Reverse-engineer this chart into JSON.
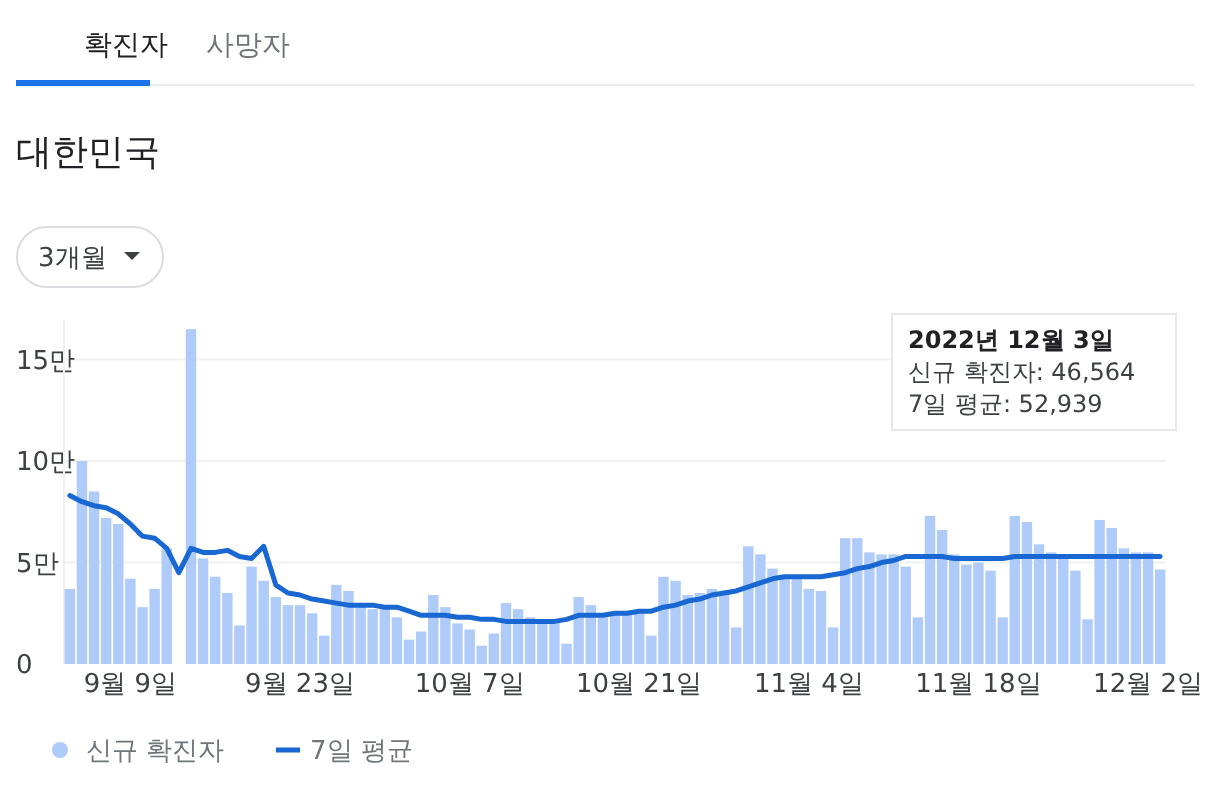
{
  "chart_data": {
    "type": "bar",
    "title": "대한민국",
    "categories": [
      null,
      null,
      null,
      null,
      null,
      "9월 9일",
      null,
      null,
      null,
      null,
      null,
      null,
      null,
      null,
      null,
      null,
      null,
      null,
      null,
      "9월 23일",
      null,
      null,
      null,
      null,
      null,
      null,
      null,
      null,
      null,
      null,
      null,
      null,
      null,
      "10월 7일",
      null,
      null,
      null,
      null,
      null,
      null,
      null,
      null,
      null,
      null,
      null,
      null,
      null,
      "10월 21일",
      null,
      null,
      null,
      null,
      null,
      null,
      null,
      null,
      null,
      null,
      null,
      null,
      null,
      "11월 4일",
      null,
      null,
      null,
      null,
      null,
      null,
      null,
      null,
      null,
      null,
      null,
      null,
      null,
      "11월 18일",
      null,
      null,
      null,
      null,
      null,
      null,
      null,
      null,
      null,
      null,
      null,
      null,
      null,
      "12월 2일",
      null
    ],
    "series": [
      {
        "name": "신규 확진자",
        "color": "#aecbfa",
        "values": [
          3.7,
          10,
          8.5,
          7.2,
          6.9,
          4.2,
          2.8,
          3.7,
          5.7,
          null,
          16.5,
          5.2,
          4.3,
          3.5,
          1.9,
          4.8,
          4.1,
          3.3,
          2.9,
          2.9,
          2.5,
          1.4,
          3.9,
          3.6,
          2.9,
          2.7,
          2.9,
          2.3,
          1.2,
          1.6,
          3.4,
          2.8,
          2,
          1.7,
          0.9,
          1.5,
          3,
          2.7,
          2.3,
          2.1,
          2.1,
          1,
          3.3,
          2.9,
          2.3,
          2.5,
          2.5,
          2.5,
          1.4,
          4.3,
          4.1,
          3.4,
          3.5,
          3.7,
          3.5,
          1.8,
          5.8,
          5.4,
          4.7,
          4.4,
          4.3,
          3.7,
          3.6,
          1.8,
          6.2,
          6.2,
          5.5,
          5.4,
          5.4,
          4.8,
          2.3,
          7.3,
          6.6,
          5.4,
          4.9,
          5,
          4.6,
          2.3,
          7.3,
          7,
          5.9,
          5.5,
          5.4,
          4.6,
          2.2,
          7.1,
          6.7,
          5.7,
          5.5,
          5.5,
          4.6564
        ]
      },
      {
        "name": "7일 평균",
        "type": "line",
        "color": "#1967d2",
        "values": [
          8.3,
          8,
          7.8,
          7.7,
          7.4,
          6.9,
          6.3,
          6.2,
          5.7,
          4.5,
          5.7,
          5.5,
          5.5,
          5.6,
          5.3,
          5.2,
          5.8,
          3.9,
          3.5,
          3.4,
          3.2,
          3.1,
          3,
          2.9,
          2.9,
          2.9,
          2.8,
          2.8,
          2.6,
          2.4,
          2.4,
          2.4,
          2.3,
          2.3,
          2.2,
          2.2,
          2.1,
          2.1,
          2.1,
          2.1,
          2.1,
          2.2,
          2.4,
          2.4,
          2.4,
          2.5,
          2.5,
          2.6,
          2.6,
          2.8,
          2.9,
          3.1,
          3.2,
          3.4,
          3.5,
          3.6,
          3.8,
          4,
          4.2,
          4.3,
          4.3,
          4.3,
          4.3,
          4.4,
          4.5,
          4.7,
          4.8,
          5,
          5.1,
          5.3,
          5.3,
          5.3,
          5.3,
          5.2,
          5.2,
          5.2,
          5.2,
          5.2,
          5.3,
          5.3,
          5.3,
          5.3,
          5.3,
          5.3,
          5.3,
          5.3,
          5.3,
          5.3,
          5.3,
          5.3,
          5.2939
        ]
      }
    ],
    "ylim": [
      0,
      17
    ],
    "yticks": [
      0,
      {
        "value": 5,
        "label": "5만"
      },
      {
        "value": 10,
        "label": "10만"
      },
      {
        "value": 15,
        "label": "15만"
      }
    ],
    "grid": "y",
    "legend": "bottom left",
    "annotations": [
      "확진자",
      "사망자",
      "3개월",
      "2022년 12월 3일",
      "신규 확진자: 46,564",
      "7일 평균: 52,939"
    ]
  }
}
